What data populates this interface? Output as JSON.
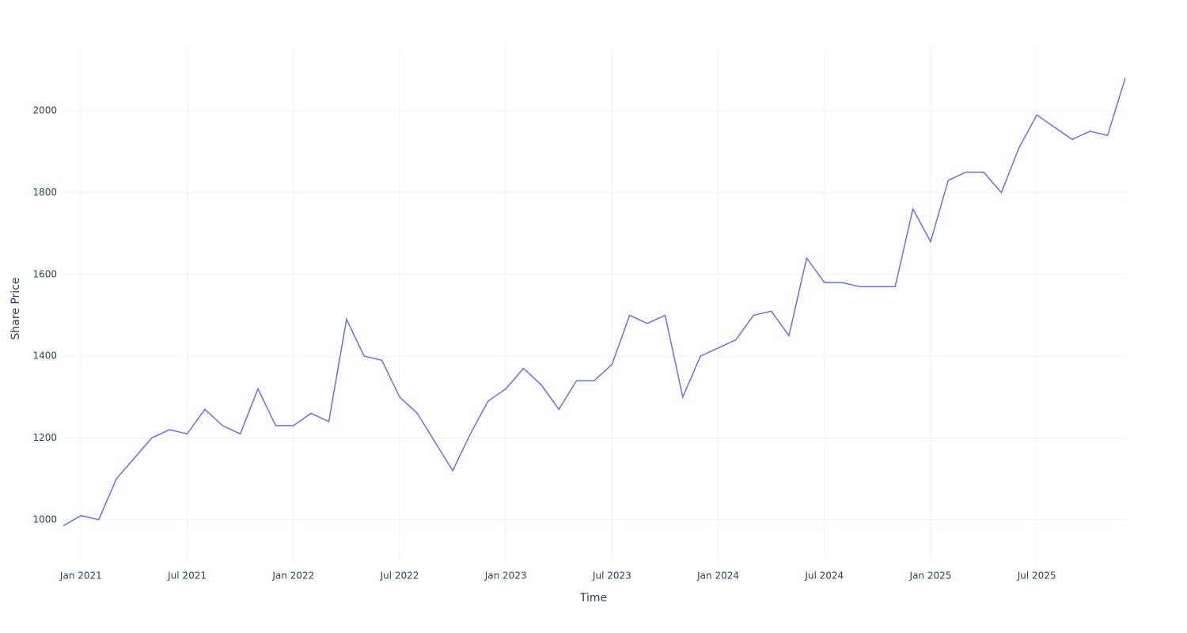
{
  "chart_data": {
    "type": "line",
    "x_label": "Time",
    "y_label": "Share Price",
    "x": [
      "2020-12",
      "2021-01",
      "2021-02",
      "2021-03",
      "2021-04",
      "2021-05",
      "2021-06",
      "2021-07",
      "2021-08",
      "2021-09",
      "2021-10",
      "2021-11",
      "2021-12",
      "2022-01",
      "2022-02",
      "2022-03",
      "2022-04",
      "2022-05",
      "2022-06",
      "2022-07",
      "2022-08",
      "2022-09",
      "2022-10",
      "2022-11",
      "2022-12",
      "2023-01",
      "2023-02",
      "2023-03",
      "2023-04",
      "2023-05",
      "2023-06",
      "2023-07",
      "2023-08",
      "2023-09",
      "2023-10",
      "2023-11",
      "2023-12",
      "2024-01",
      "2024-02",
      "2024-03",
      "2024-04",
      "2024-05",
      "2024-06",
      "2024-07",
      "2024-08",
      "2024-09",
      "2024-10",
      "2024-11",
      "2024-12",
      "2025-01",
      "2025-02",
      "2025-03",
      "2025-04",
      "2025-05",
      "2025-06",
      "2025-07",
      "2025-08",
      "2025-09",
      "2025-10",
      "2025-11",
      "2025-12"
    ],
    "series": [
      {
        "name": "Share Price",
        "color": "#636efa",
        "values": [
          985,
          1010,
          1000,
          1100,
          1150,
          1200,
          1220,
          1210,
          1270,
          1230,
          1210,
          1320,
          1230,
          1230,
          1260,
          1240,
          1490,
          1400,
          1390,
          1300,
          1260,
          1190,
          1120,
          1210,
          1290,
          1320,
          1370,
          1330,
          1270,
          1340,
          1340,
          1380,
          1500,
          1480,
          1500,
          1300,
          1400,
          1420,
          1440,
          1500,
          1510,
          1450,
          1640,
          1580,
          1580,
          1570,
          1570,
          1570,
          1760,
          1680,
          1830,
          1850,
          1850,
          1800,
          1910,
          1990,
          1960,
          1930,
          1950,
          1940,
          2080
        ]
      }
    ],
    "xlim": [
      "2020-12",
      "2025-12"
    ],
    "xticks": [
      {
        "value": "2021-01",
        "label": "Jan 2021"
      },
      {
        "value": "2021-07",
        "label": "Jul 2021"
      },
      {
        "value": "2022-01",
        "label": "Jan 2022"
      },
      {
        "value": "2022-07",
        "label": "Jul 2022"
      },
      {
        "value": "2023-01",
        "label": "Jan 2023"
      },
      {
        "value": "2023-07",
        "label": "Jul 2023"
      },
      {
        "value": "2024-01",
        "label": "Jan 2024"
      },
      {
        "value": "2024-07",
        "label": "Jul 2024"
      },
      {
        "value": "2025-01",
        "label": "Jan 2025"
      },
      {
        "value": "2025-07",
        "label": "Jul 2025"
      }
    ],
    "ylim": [
      897,
      2155
    ],
    "yticks": [
      1000,
      1200,
      1400,
      1600,
      1800,
      2000
    ],
    "grid": true
  }
}
